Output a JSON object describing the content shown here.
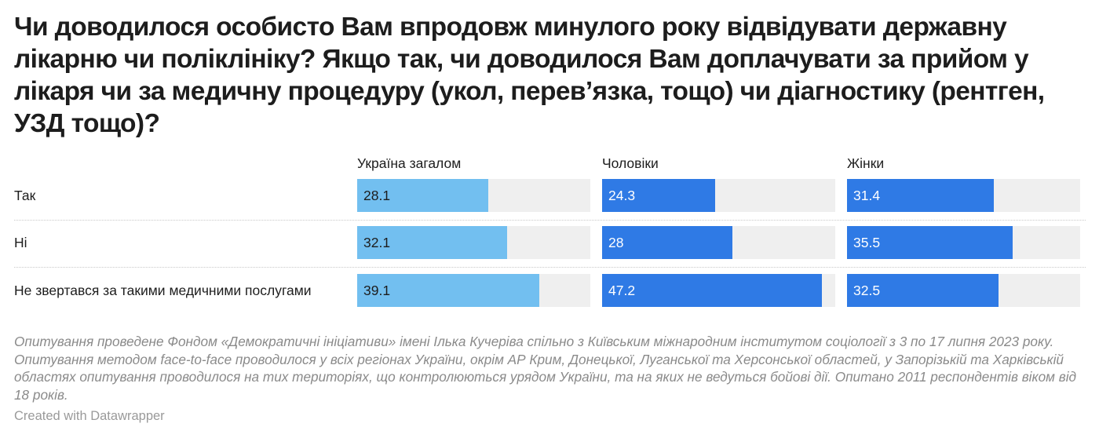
{
  "title": "Чи доводилося особисто Вам впродовж минулого року відвідувати державну лікарню чи поліклініку? Якщо так, чи доводилося Вам доплачувати за прийом у лікаря чи за медичну процедуру (укол, перев’язка, тощо) чи діагностику (рентген, УЗД тощо)?",
  "colors": {
    "ukraine": "#72bff0",
    "men": "#2f7ae5",
    "women": "#2f7ae5",
    "track": "#efefef"
  },
  "chart_data": {
    "type": "bar",
    "categories": [
      "Так",
      "Ні",
      "Не звертався за такими медичними послугами"
    ],
    "series": [
      {
        "name": "Україна загалом",
        "values": [
          28.1,
          32.1,
          39.1
        ],
        "labels": [
          "28.1",
          "32.1",
          "39.1"
        ]
      },
      {
        "name": "Чоловіки",
        "values": [
          24.3,
          28,
          47.2
        ],
        "labels": [
          "24.3",
          "28",
          "47.2"
        ]
      },
      {
        "name": "Жінки",
        "values": [
          31.4,
          35.5,
          32.5
        ],
        "labels": [
          "31.4",
          "35.5",
          "32.5"
        ]
      }
    ],
    "xlim": [
      0,
      50
    ]
  },
  "note": "Опитування проведене Фондом «Демократичні ініціативи» імені Ілька Кучеріва спільно з Київським міжнародним інститутом соціології з 3 по 17 липня 2023 року. Опитування методом face-to-face проводилося у всіх регіонах України, окрім АР Крим, Донецької, Луганської та Херсонської областей, у Запорізькій та Харківській областях опитування проводилося на тих територіях, що контролюються урядом України, та на яких не ведуться бойові дії. Опитано 2011 респондентів віком від 18 років.",
  "credit": "Created with Datawrapper"
}
